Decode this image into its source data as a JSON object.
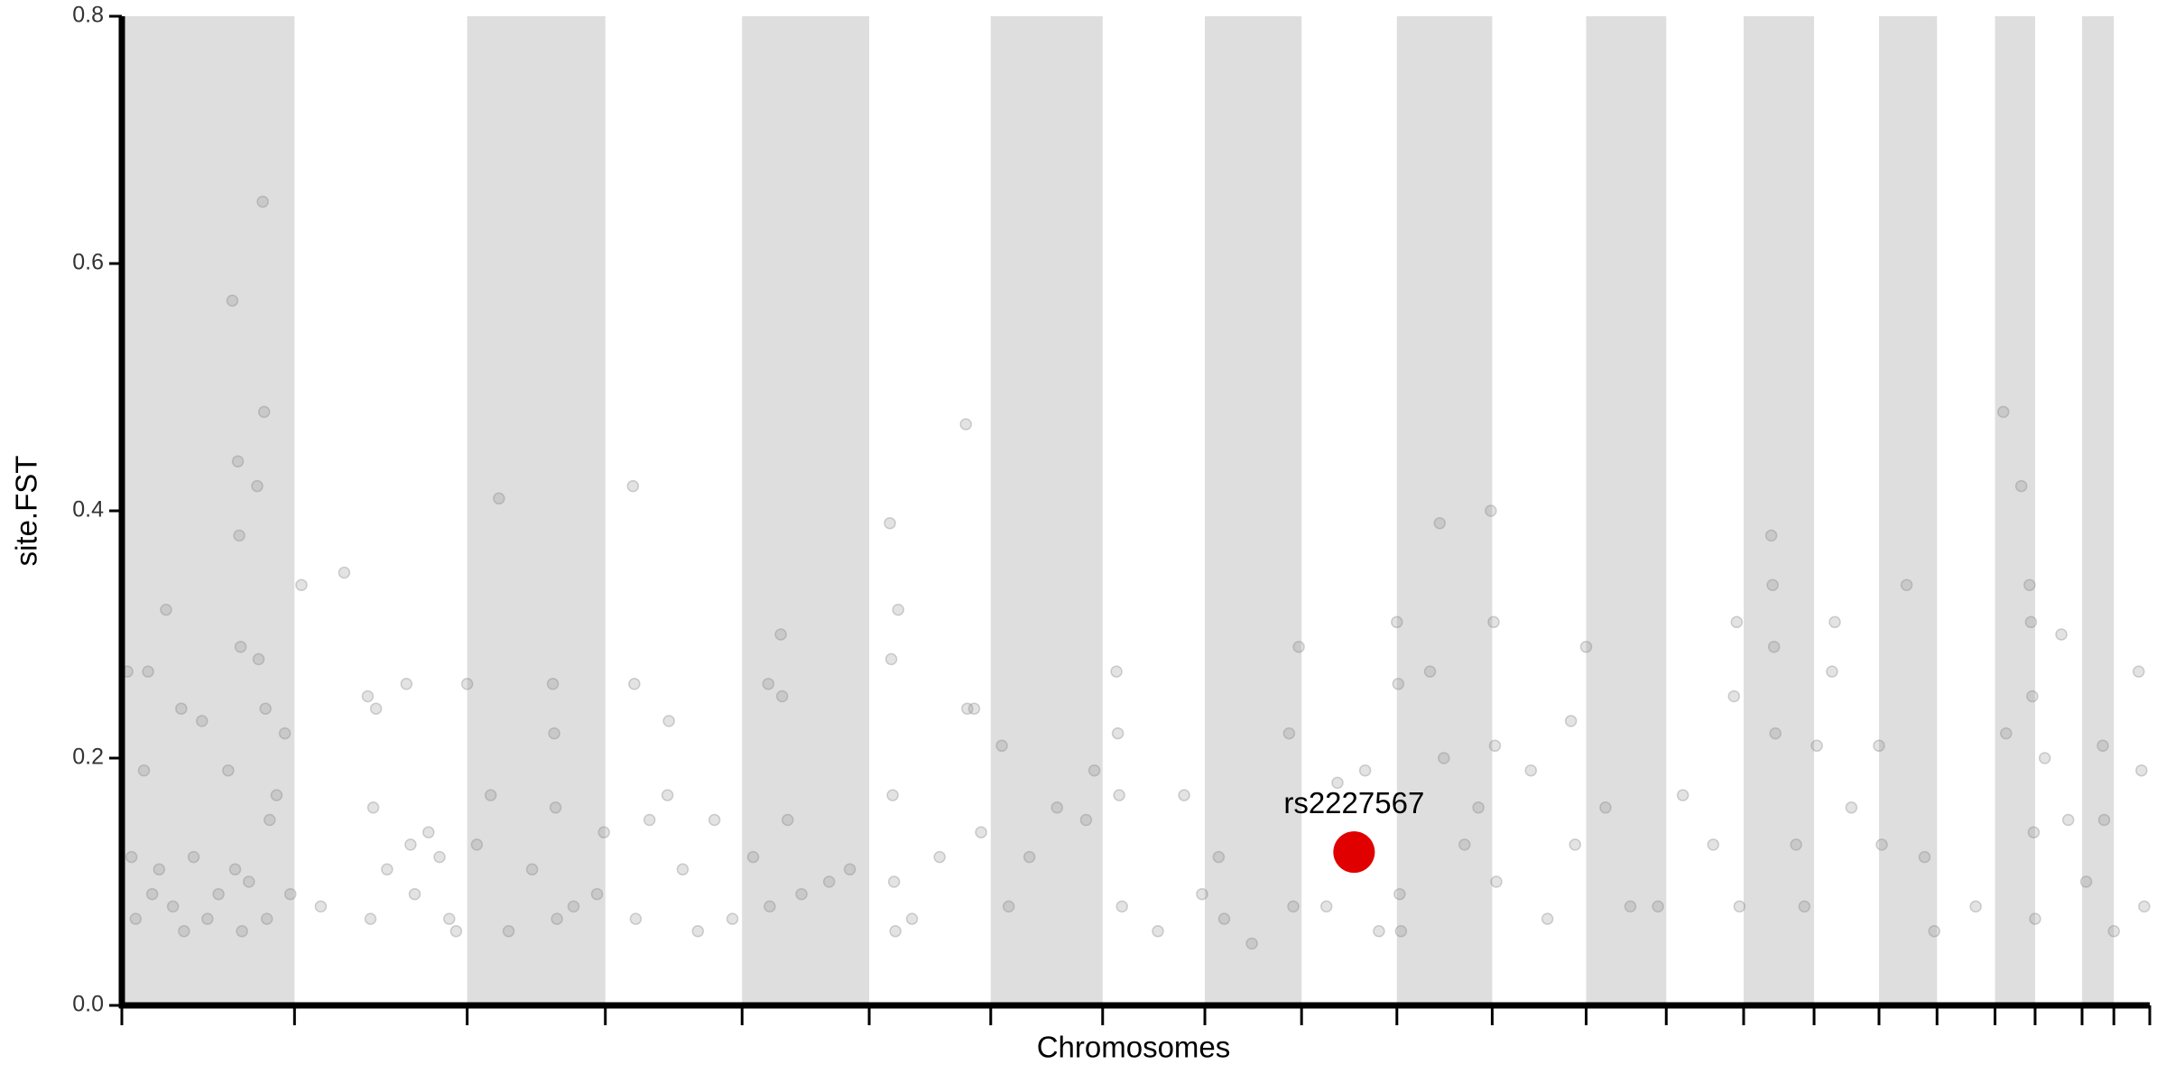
{
  "chart_data": {
    "type": "scatter",
    "y_label": "site.FST",
    "x_label": "Chromosomes",
    "xlim": [
      88,
      1556
    ],
    "ylim": [
      0,
      0.8
    ],
    "yticks": [
      {
        "value": 0,
        "label": "0.0"
      },
      0.2,
      0.4,
      0.6,
      0.8
    ],
    "chromosome_boundaries": [
      88,
      213,
      338,
      438,
      537,
      629,
      717,
      798,
      872,
      942,
      1011,
      1080,
      1148,
      1206,
      1262,
      1313,
      1360,
      1402,
      1444,
      1473,
      1507,
      1530,
      1556
    ],
    "band_color": "#dedede",
    "point_color": "#808080",
    "x": [
      92,
      95,
      98,
      104,
      107,
      110,
      115,
      120,
      125,
      131,
      133,
      140,
      146,
      150,
      158,
      165,
      168,
      170,
      172,
      173,
      174,
      175,
      180,
      186,
      187,
      190,
      191,
      192,
      193,
      195,
      200,
      206,
      210,
      218,
      232,
      249,
      266,
      268,
      270,
      272,
      280,
      294,
      297,
      300,
      310,
      318,
      325,
      330,
      338,
      345,
      355,
      361,
      368,
      385,
      400,
      401,
      402,
      403,
      415,
      432,
      437,
      458,
      460,
      459,
      470,
      483,
      484,
      494,
      505,
      517,
      530,
      545,
      556,
      557,
      565,
      566,
      570,
      580,
      600,
      615,
      644,
      645,
      646,
      647,
      648,
      650,
      660,
      680,
      699,
      700,
      705,
      710,
      725,
      730,
      745,
      765,
      786,
      792,
      808,
      809,
      810,
      812,
      838,
      857,
      870,
      882,
      886,
      906,
      933,
      936,
      940,
      960,
      968,
      988,
      998,
      1011,
      1012,
      1013,
      1014,
      1035,
      1042,
      1045,
      1060,
      1070,
      1079,
      1081,
      1082,
      1083,
      1108,
      1120,
      1137,
      1140,
      1148,
      1162,
      1180,
      1200,
      1218,
      1240,
      1255,
      1257,
      1259,
      1282,
      1283,
      1284,
      1285,
      1300,
      1306,
      1315,
      1326,
      1328,
      1340,
      1360,
      1362,
      1380,
      1393,
      1400,
      1430,
      1450,
      1452,
      1463,
      1469,
      1470,
      1471,
      1472,
      1473,
      1480,
      1492,
      1497,
      1510,
      1522,
      1523,
      1530,
      1548,
      1550,
      1552
    ],
    "values": [
      0.27,
      0.12,
      0.07,
      0.19,
      0.27,
      0.09,
      0.11,
      0.32,
      0.08,
      0.24,
      0.06,
      0.12,
      0.23,
      0.07,
      0.09,
      0.19,
      0.57,
      0.11,
      0.44,
      0.38,
      0.29,
      0.06,
      0.1,
      0.42,
      0.28,
      0.65,
      0.48,
      0.24,
      0.07,
      0.15,
      0.17,
      0.22,
      0.09,
      0.34,
      0.08,
      0.35,
      0.25,
      0.07,
      0.16,
      0.24,
      0.11,
      0.26,
      0.13,
      0.09,
      0.14,
      0.12,
      0.07,
      0.06,
      0.26,
      0.13,
      0.17,
      0.41,
      0.06,
      0.11,
      0.26,
      0.22,
      0.16,
      0.07,
      0.08,
      0.09,
      0.14,
      0.42,
      0.07,
      0.26,
      0.15,
      0.17,
      0.23,
      0.11,
      0.06,
      0.15,
      0.07,
      0.12,
      0.26,
      0.08,
      0.3,
      0.25,
      0.15,
      0.09,
      0.1,
      0.11,
      0.39,
      0.28,
      0.17,
      0.1,
      0.06,
      0.32,
      0.07,
      0.12,
      0.47,
      0.24,
      0.24,
      0.14,
      0.21,
      0.08,
      0.12,
      0.16,
      0.15,
      0.19,
      0.27,
      0.22,
      0.17,
      0.08,
      0.06,
      0.17,
      0.09,
      0.12,
      0.07,
      0.05,
      0.22,
      0.08,
      0.29,
      0.08,
      0.18,
      0.19,
      0.06,
      0.31,
      0.26,
      0.09,
      0.06,
      0.27,
      0.39,
      0.2,
      0.13,
      0.16,
      0.4,
      0.31,
      0.21,
      0.1,
      0.19,
      0.07,
      0.23,
      0.13,
      0.29,
      0.16,
      0.08,
      0.08,
      0.17,
      0.13,
      0.25,
      0.31,
      0.08,
      0.38,
      0.34,
      0.29,
      0.22,
      0.13,
      0.08,
      0.21,
      0.27,
      0.31,
      0.16,
      0.21,
      0.13,
      0.34,
      0.12,
      0.06,
      0.08,
      0.48,
      0.22,
      0.42,
      0.34,
      0.31,
      0.25,
      0.14,
      0.07,
      0.2,
      0.3,
      0.15,
      0.1,
      0.21,
      0.15,
      0.06,
      0.27,
      0.19,
      0.08
    ],
    "highlight": {
      "label": "rs2227567",
      "x": 980,
      "value": 0.124,
      "color": "#e00000"
    }
  }
}
